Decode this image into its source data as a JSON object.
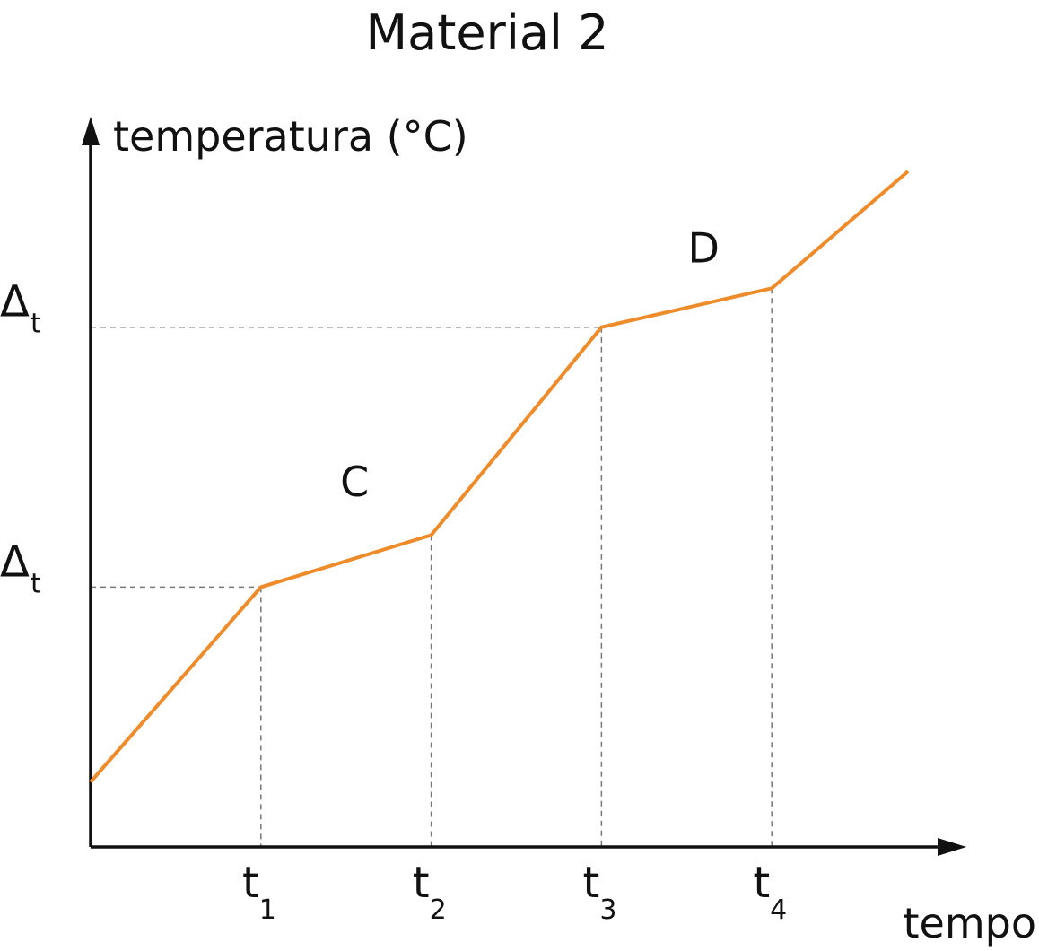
{
  "chart_data": {
    "type": "line",
    "title": "Material 2",
    "xlabel": "tempo",
    "ylabel": "temperatura (°C)",
    "x_ticks": [
      {
        "main": "t",
        "sub": "1",
        "x": 1
      },
      {
        "main": "t",
        "sub": "2",
        "x": 2
      },
      {
        "main": "t",
        "sub": "3",
        "x": 3
      },
      {
        "main": "t",
        "sub": "4",
        "x": 4
      }
    ],
    "y_ticks": [
      {
        "main": "Δ",
        "sub": "t",
        "y": 1
      },
      {
        "main": "Δ",
        "sub": "t",
        "y": 2
      }
    ],
    "xlim": [
      0,
      4.8
    ],
    "ylim": [
      0,
      2.7
    ],
    "series": [
      {
        "color": "#ee8b2a",
        "points": [
          {
            "x": 0,
            "y": 0.25
          },
          {
            "x": 1,
            "y": 1
          },
          {
            "x": 2,
            "y": 1.2
          },
          {
            "x": 3,
            "y": 2
          },
          {
            "x": 4,
            "y": 2.15
          },
          {
            "x": 4.8,
            "y": 2.6
          }
        ]
      }
    ],
    "annotations": [
      {
        "text": "C",
        "x": 1.55,
        "y": 1.35
      },
      {
        "text": "D",
        "x": 3.6,
        "y": 2.25
      }
    ],
    "guides": [
      {
        "from": [
          0,
          1
        ],
        "to": [
          1,
          1
        ]
      },
      {
        "from": [
          1,
          1
        ],
        "to": [
          1,
          0
        ]
      },
      {
        "from": [
          2,
          1.2
        ],
        "to": [
          2,
          0
        ]
      },
      {
        "from": [
          0,
          2
        ],
        "to": [
          3,
          2
        ]
      },
      {
        "from": [
          3,
          2
        ],
        "to": [
          3,
          0
        ]
      },
      {
        "from": [
          4,
          2.15
        ],
        "to": [
          4,
          0
        ]
      }
    ],
    "grid": false,
    "axis_color": "#111111",
    "guide_color": "#777777"
  }
}
